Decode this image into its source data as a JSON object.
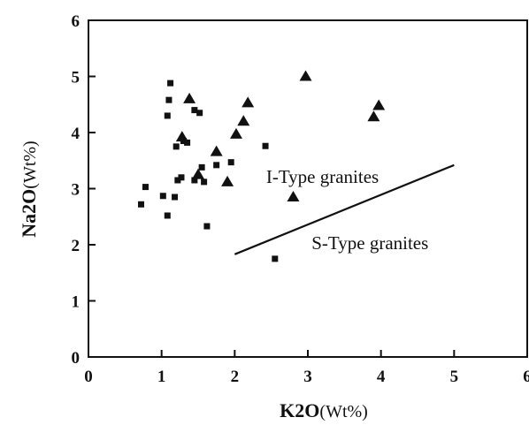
{
  "chart_data": {
    "type": "scatter",
    "title": "",
    "xlabel": {
      "main": "K2O",
      "unit": "(Wt%)"
    },
    "ylabel": {
      "main": "Na2O",
      "unit": "(Wt%)"
    },
    "xlim": [
      0,
      6
    ],
    "ylim": [
      0,
      6
    ],
    "xticks": [
      "0",
      "1",
      "2",
      "3",
      "4",
      "5",
      "6"
    ],
    "yticks": [
      "0",
      "1",
      "2",
      "3",
      "4",
      "5",
      "6"
    ],
    "grid": false,
    "legend": "none",
    "series": [
      {
        "marker": "square",
        "color": "#111111",
        "points": [
          [
            0.72,
            2.72
          ],
          [
            0.78,
            3.03
          ],
          [
            1.02,
            2.87
          ],
          [
            1.08,
            2.52
          ],
          [
            1.08,
            4.3
          ],
          [
            1.1,
            4.58
          ],
          [
            1.12,
            4.88
          ],
          [
            1.18,
            2.85
          ],
          [
            1.2,
            3.75
          ],
          [
            1.22,
            3.15
          ],
          [
            1.27,
            3.2
          ],
          [
            1.3,
            3.85
          ],
          [
            1.35,
            3.82
          ],
          [
            1.45,
            3.15
          ],
          [
            1.45,
            4.4
          ],
          [
            1.52,
            4.35
          ],
          [
            1.55,
            3.38
          ],
          [
            1.58,
            3.12
          ],
          [
            1.62,
            2.33
          ],
          [
            1.75,
            3.42
          ],
          [
            1.95,
            3.47
          ],
          [
            2.42,
            3.76
          ],
          [
            2.55,
            1.75
          ]
        ]
      },
      {
        "marker": "triangle",
        "color": "#111111",
        "points": [
          [
            1.28,
            3.92
          ],
          [
            1.38,
            4.6
          ],
          [
            1.5,
            3.25
          ],
          [
            1.75,
            3.66
          ],
          [
            1.9,
            3.12
          ],
          [
            2.02,
            3.97
          ],
          [
            2.12,
            4.2
          ],
          [
            2.18,
            4.53
          ],
          [
            2.8,
            2.85
          ],
          [
            2.97,
            5.0
          ],
          [
            3.9,
            4.28
          ],
          [
            3.97,
            4.48
          ]
        ]
      }
    ],
    "lines": [
      {
        "from": [
          2.0,
          1.83
        ],
        "to": [
          5.0,
          3.42
        ],
        "color": "#111111"
      }
    ],
    "annotations": [
      {
        "text": "I-Type granites",
        "x": 3.2,
        "y": 3.1
      },
      {
        "text": "S-Type granites",
        "x": 3.85,
        "y": 1.92
      }
    ]
  }
}
